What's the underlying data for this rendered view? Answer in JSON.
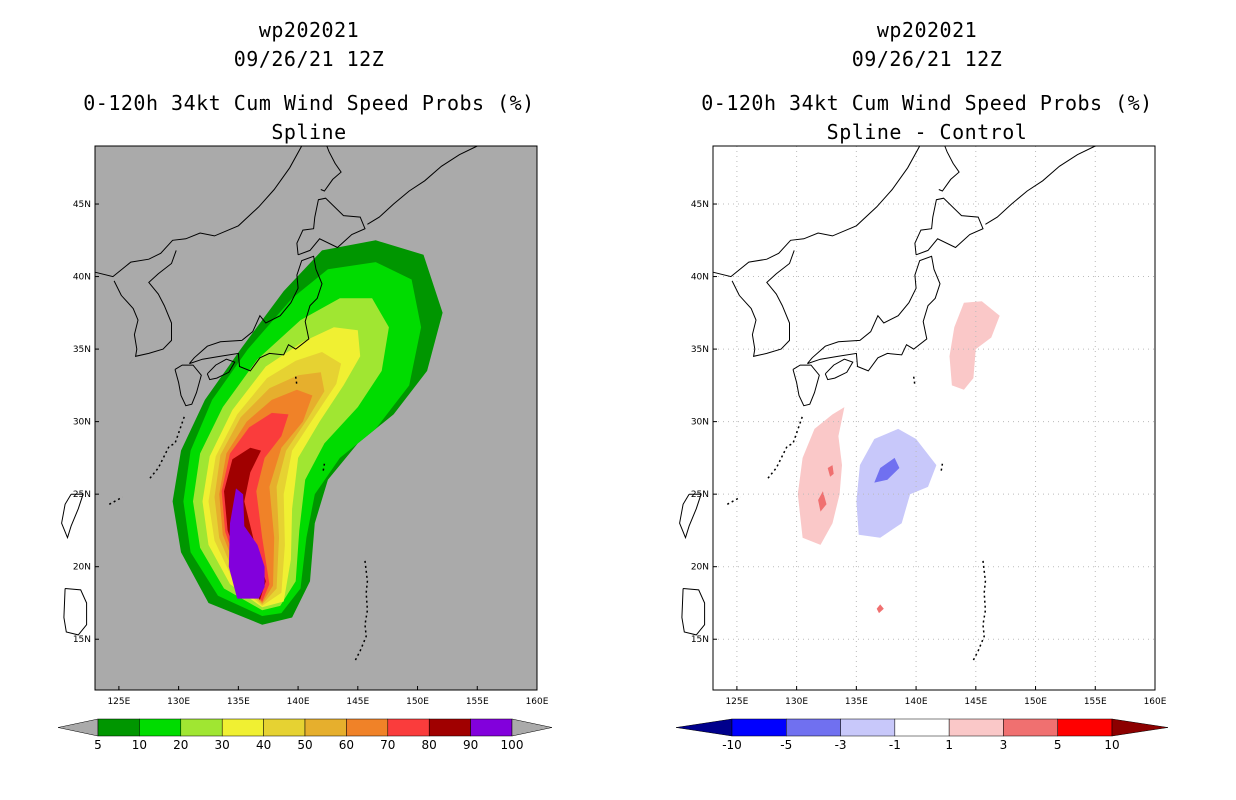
{
  "panels": [
    {
      "storm_id": "wp202021",
      "datetime": "09/26/21 12Z",
      "product": "0-120h 34kt Cum Wind Speed Probs (%)",
      "subtitle": "Spline",
      "colorbar": {
        "labels": [
          "5",
          "10",
          "20",
          "30",
          "40",
          "50",
          "60",
          "70",
          "80",
          "90",
          "100"
        ],
        "colors": [
          "#aaaaaa",
          "#009600",
          "#00dc00",
          "#a0e632",
          "#f0f032",
          "#e6d232",
          "#e6af2d",
          "#f08228",
          "#fa3c3c",
          "#a00000",
          "#8200dc",
          "#aaaaaa"
        ]
      }
    },
    {
      "storm_id": "wp202021",
      "datetime": "09/26/21 12Z",
      "product": "0-120h 34kt Cum Wind Speed Probs (%)",
      "subtitle": "Spline - Control",
      "colorbar": {
        "labels": [
          "-10",
          "-5",
          "-3",
          "-1",
          "1",
          "3",
          "5",
          "10"
        ],
        "colors": [
          "#00008c",
          "#0000ff",
          "#7070f0",
          "#c8c8fa",
          "#ffffff",
          "#fac8c8",
          "#f07070",
          "#ff0000",
          "#8c0000"
        ]
      }
    }
  ],
  "axes": {
    "lon_labels": [
      "125E",
      "130E",
      "135E",
      "140E",
      "145E",
      "150E",
      "155E",
      "160E"
    ],
    "lat_labels": [
      "45N",
      "40N",
      "35N",
      "30N",
      "25N",
      "20N",
      "15N"
    ]
  },
  "chart_data": {
    "type": "map",
    "projection": "equirectangular",
    "lon_range": [
      123,
      160
    ],
    "lat_range": [
      11.5,
      49
    ],
    "prob_track_centerline": [
      [
        136.5,
        17.7
      ],
      [
        135.3,
        21
      ],
      [
        135.8,
        25
      ],
      [
        137.2,
        28
      ],
      [
        139.5,
        31
      ],
      [
        143,
        34
      ],
      [
        148,
        38
      ]
    ],
    "difference_positive_regions": [
      "south-west of track near 132E 25N",
      "north-east near 144E 35N"
    ],
    "difference_negative_regions": [
      "east of track near 138E 26N"
    ]
  }
}
